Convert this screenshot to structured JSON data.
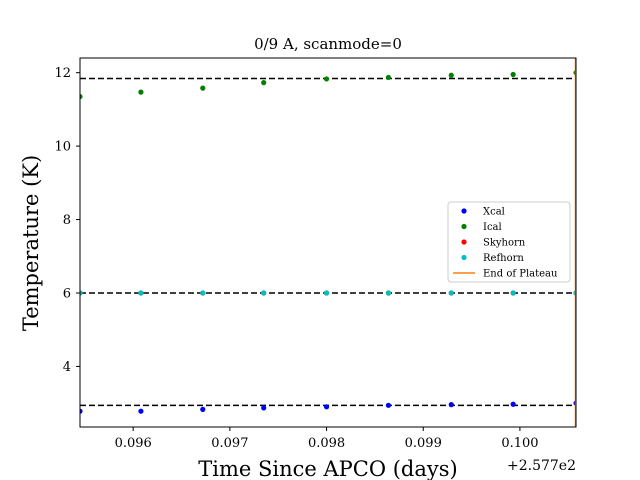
{
  "chart_data": {
    "type": "scatter",
    "title": "0/9 A, scanmode=0",
    "xlabel": "Time Since APCO (days)",
    "ylabel": "Temperature (K)",
    "x_offset_label": "+2.577e2",
    "xlim": [
      0.09545,
      0.10058
    ],
    "ylim": [
      2.35,
      12.4
    ],
    "x_ticks": [
      0.096,
      0.097,
      0.098,
      0.099,
      0.1
    ],
    "x_tick_labels": [
      "0.096",
      "0.097",
      "0.098",
      "0.099",
      "0.100"
    ],
    "y_ticks": [
      4,
      6,
      8,
      10,
      12
    ],
    "y_tick_labels": [
      "4",
      "6",
      "8",
      "10",
      "12"
    ],
    "grid": false,
    "legend_position": "center-right",
    "x": [
      0.09545,
      0.09608,
      0.09672,
      0.09735,
      0.098,
      0.09864,
      0.09929,
      0.09993,
      0.10058
    ],
    "series": [
      {
        "name": "Xcal",
        "color": "#0000ff",
        "values": [
          2.78,
          2.78,
          2.83,
          2.87,
          2.9,
          2.94,
          2.96,
          2.97,
          3.0
        ]
      },
      {
        "name": "Ical",
        "color": "#008000",
        "values": [
          11.35,
          11.47,
          11.58,
          11.73,
          11.83,
          11.87,
          11.93,
          11.95,
          12.0
        ]
      },
      {
        "name": "Skyhorn",
        "color": "#ff0000",
        "values": [
          6.0,
          6.0,
          6.0,
          6.0,
          6.0,
          6.0,
          6.0,
          6.0,
          6.0
        ]
      },
      {
        "name": "Refhorn",
        "color": "#00bfbf",
        "values": [
          6.0,
          6.0,
          6.0,
          6.0,
          6.0,
          6.0,
          6.0,
          6.0,
          6.0
        ]
      }
    ],
    "reference_lines": [
      {
        "y": 11.84,
        "color": "#000000",
        "style": "dashed"
      },
      {
        "y": 6.0,
        "color": "#000000",
        "style": "dashed"
      },
      {
        "y": 2.94,
        "color": "#000000",
        "style": "dashed"
      }
    ],
    "vertical_line": {
      "name": "End of Plateau",
      "x": 0.10058,
      "color": "#ff7f0e"
    }
  }
}
